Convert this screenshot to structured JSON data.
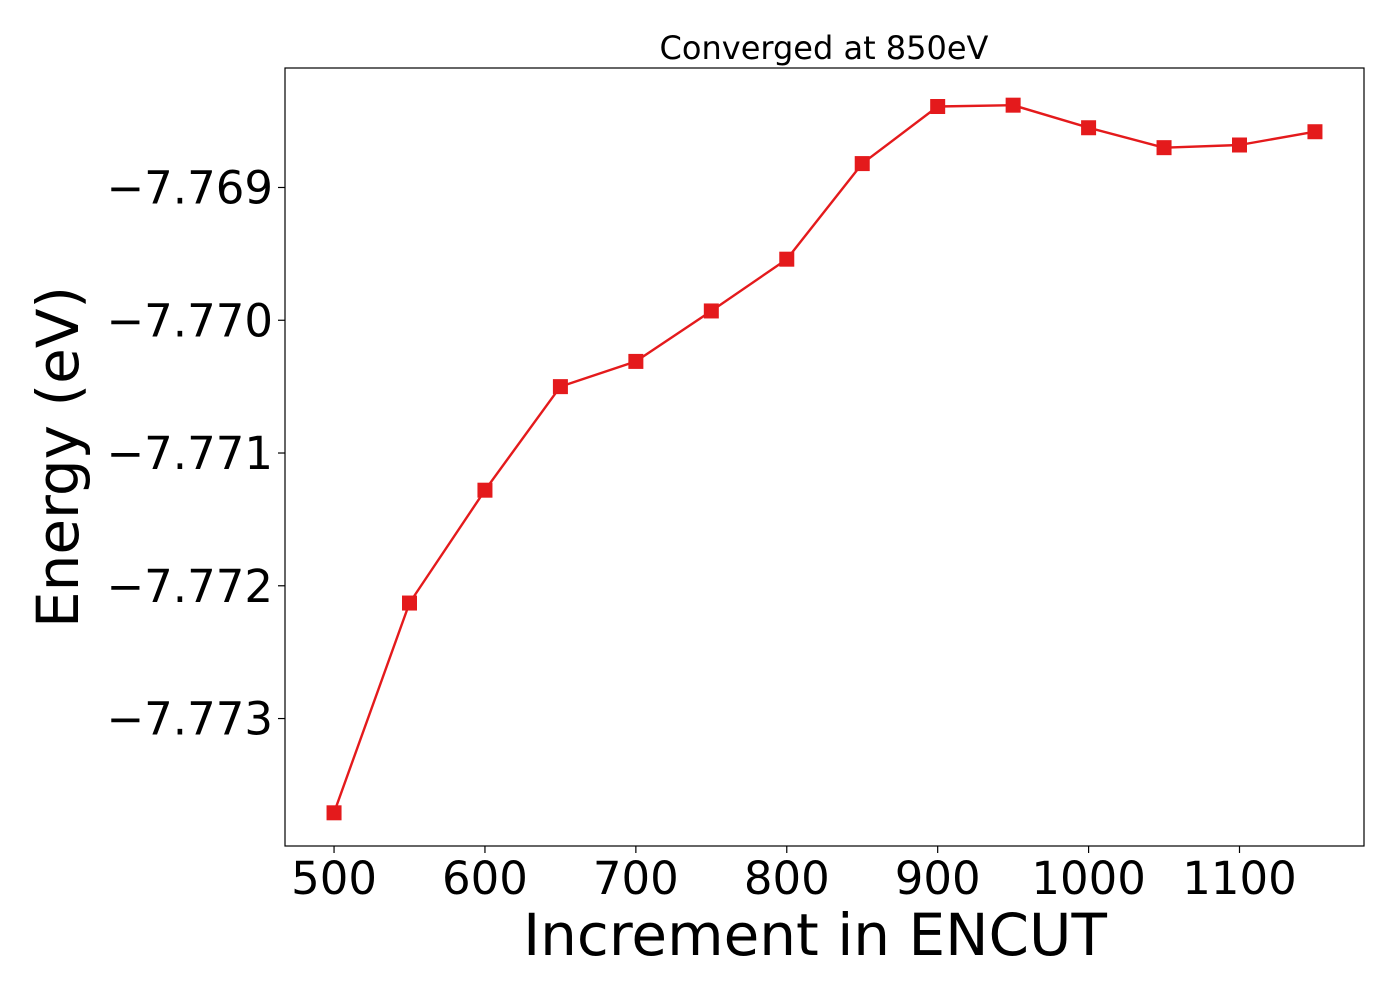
{
  "chart_data": {
    "type": "line",
    "title": "Converged at 850eV",
    "xlabel": "Increment in ENCUT",
    "ylabel": "Energy (eV)",
    "x": [
      500,
      550,
      600,
      650,
      700,
      750,
      800,
      850,
      900,
      950,
      1000,
      1050,
      1100,
      1150
    ],
    "series": [
      {
        "values": [
          -7.77371,
          -7.77213,
          -7.77128,
          -7.7705,
          -7.77031,
          -7.76993,
          -7.76954,
          -7.76882,
          -7.76839,
          -7.76838,
          -7.76855,
          -7.7687,
          -7.76868,
          -7.76858
        ]
      }
    ],
    "xlim": [
      467.5,
      1182.5
    ],
    "ylim": [
      -7.77396,
      -7.7681
    ],
    "xticks": [
      500,
      600,
      700,
      800,
      900,
      1000,
      1100
    ],
    "xtick_labels": [
      "500",
      "600",
      "700",
      "800",
      "900",
      "1000",
      "1100"
    ],
    "yticks": [
      -7.769,
      -7.77,
      -7.771,
      -7.772,
      -7.773
    ],
    "ytick_labels": [
      "−7.769",
      "−7.770",
      "−7.771",
      "−7.772",
      "−7.773"
    ],
    "grid": false,
    "marker": "square",
    "line_color": "#e41a1c"
  }
}
